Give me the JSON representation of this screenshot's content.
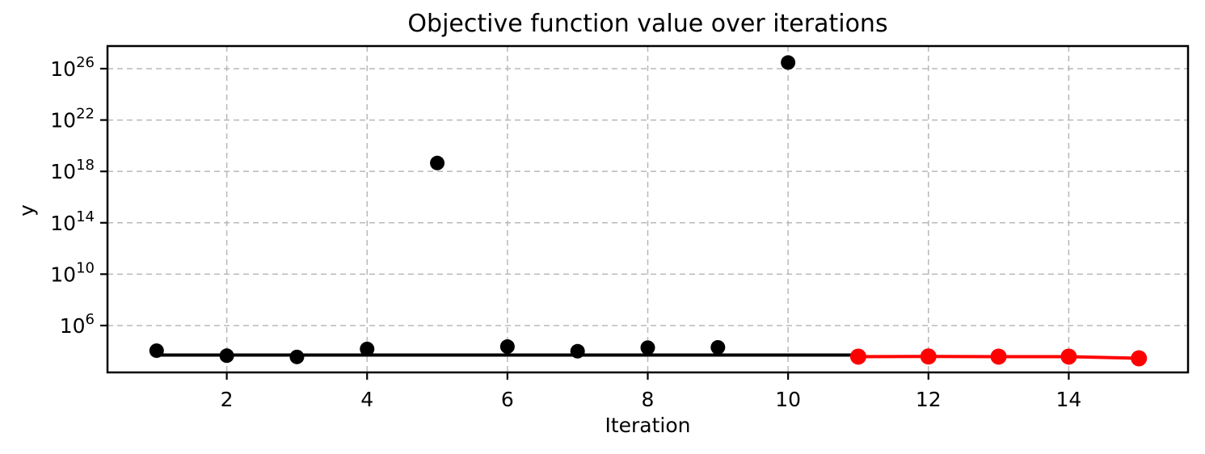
{
  "figure": {
    "title": "Objective function value over iterations",
    "xlabel": "Iteration",
    "ylabel": "y"
  },
  "chart_data": {
    "type": "scatter",
    "title": "Objective function value over iterations",
    "xlabel": "Iteration",
    "ylabel": "y",
    "yscale": "log",
    "xlim": [
      0.3,
      15.7
    ],
    "ylim_log10": [
      2.35,
      27.76
    ],
    "xticks": [
      2,
      4,
      6,
      8,
      10,
      12,
      14
    ],
    "ytick_exponents": [
      6,
      10,
      14,
      18,
      22,
      26
    ],
    "grid": {
      "on": true,
      "style": "dashed",
      "color": "#b8b8b8"
    },
    "colors": {
      "series_black": "#000000",
      "series_red": "#ff0000"
    },
    "series": [
      {
        "name": "objective-scatter-black",
        "type": "scatter",
        "color": "#000000",
        "marker_radius": 9,
        "x": [
          1,
          2,
          3,
          4,
          5,
          6,
          7,
          8,
          9,
          10
        ],
        "y": [
          11000,
          4500,
          3600,
          15000,
          4.5e+18,
          23000,
          10000,
          19000,
          20000,
          3e+26
        ]
      },
      {
        "name": "baseline-black-line",
        "type": "line",
        "color": "#000000",
        "line_width": 4,
        "x": [
          1,
          11
        ],
        "y": [
          5000,
          5000
        ]
      },
      {
        "name": "refined-red-line",
        "type": "line+marker",
        "color": "#ff0000",
        "line_width": 4,
        "marker_radius": 10,
        "x": [
          11,
          12,
          13,
          14,
          15
        ],
        "y": [
          3800,
          3900,
          3800,
          3800,
          2800
        ]
      }
    ]
  }
}
